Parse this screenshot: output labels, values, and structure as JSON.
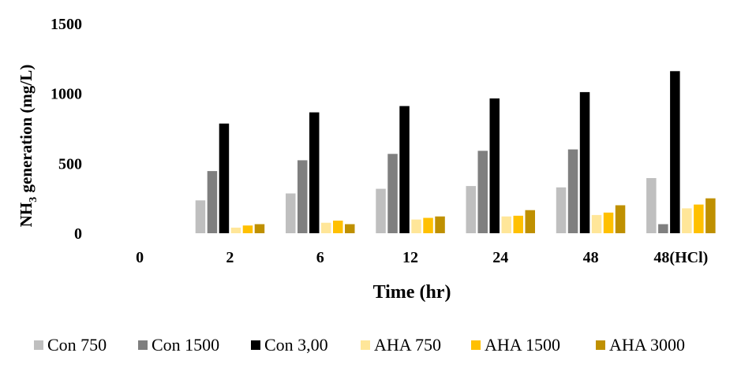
{
  "chart_data": {
    "type": "bar",
    "categories": [
      "0",
      "2",
      "6",
      "12",
      "24",
      "48",
      "48(HCl)"
    ],
    "series": [
      {
        "name": "Con 750",
        "color": "#bfbfbf",
        "values": [
          0,
          235,
          285,
          318,
          338,
          328,
          395
        ]
      },
      {
        "name": "Con 1500",
        "color": "#7f7f7f",
        "values": [
          0,
          445,
          522,
          568,
          590,
          600,
          65
        ]
      },
      {
        "name": "Con 3,00",
        "color": "#000000",
        "values": [
          0,
          785,
          865,
          910,
          965,
          1010,
          1160
        ]
      },
      {
        "name": "AHA 750",
        "color": "#ffe699",
        "values": [
          0,
          40,
          75,
          98,
          120,
          130,
          178
        ]
      },
      {
        "name": "AHA 1500",
        "color": "#ffc000",
        "values": [
          0,
          55,
          90,
          110,
          125,
          148,
          205
        ]
      },
      {
        "name": "AHA 3000",
        "color": "#bf9000",
        "values": [
          0,
          65,
          65,
          120,
          165,
          200,
          250
        ]
      }
    ],
    "title": "",
    "xlabel": "Time (hr)",
    "ylabel_main": "NH",
    "ylabel_sub": "3",
    "ylabel_rest": " generation (mg/L)",
    "ylim": [
      0,
      1500
    ],
    "yticks": [
      "0",
      "500",
      "1000",
      "1500"
    ],
    "grid": false,
    "legend_position": "bottom"
  }
}
